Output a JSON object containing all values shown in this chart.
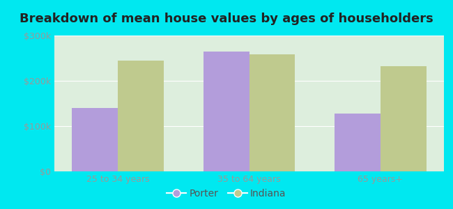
{
  "title": "Breakdown of mean house values by ages of householders",
  "categories": [
    "25 to 34 years",
    "35 to 64 years",
    "65 years+"
  ],
  "porter_values": [
    140000,
    265000,
    128000
  ],
  "indiana_values": [
    245000,
    258000,
    232000
  ],
  "porter_color": "#b39ddb",
  "indiana_color": "#bfca8e",
  "background_outer": "#00e8f0",
  "background_inner": "#e0f0e8",
  "ylim": [
    0,
    300000
  ],
  "yticks": [
    0,
    100000,
    200000,
    300000
  ],
  "ytick_labels": [
    "$0",
    "$100k",
    "$200k",
    "$300k"
  ],
  "legend_labels": [
    "Porter",
    "Indiana"
  ],
  "bar_width": 0.35,
  "title_fontsize": 13,
  "tick_fontsize": 9,
  "legend_fontsize": 10,
  "grid_color": "#d8ead0",
  "tick_color": "#999999"
}
